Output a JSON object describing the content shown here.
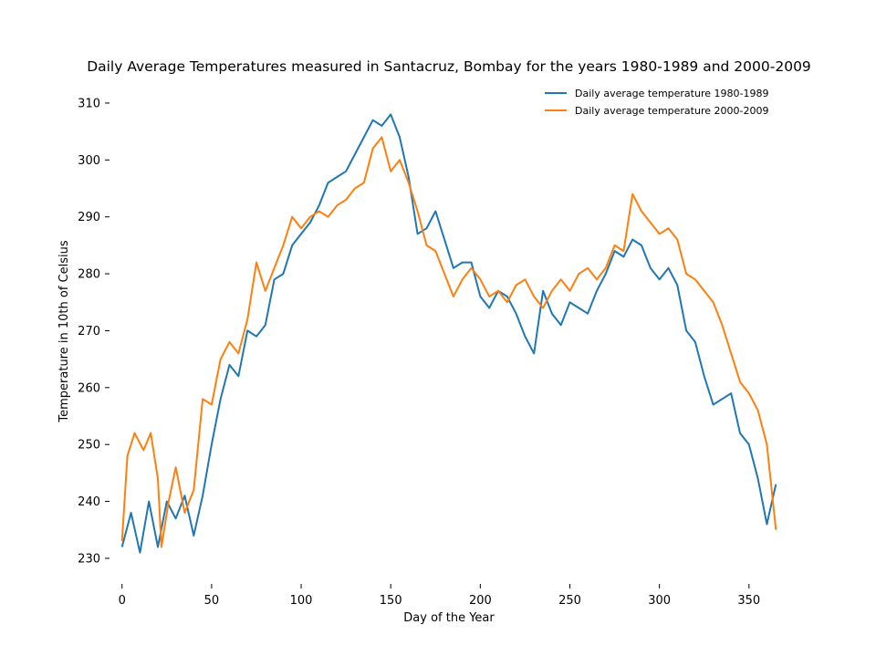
{
  "chart_data": {
    "type": "line",
    "title": "Daily Average Temperatures measured in Santacruz, Bombay for the years 1980-1989 and 2000-2009",
    "xlabel": "Day of the Year",
    "ylabel": "Temperature in 10th of Celsius",
    "xlim": [
      -7,
      372
    ],
    "ylim": [
      225.5,
      314
    ],
    "xticks": [
      0,
      50,
      100,
      150,
      200,
      250,
      300,
      350
    ],
    "yticks": [
      230,
      240,
      250,
      260,
      270,
      280,
      290,
      300,
      310
    ],
    "grid": false,
    "legend": "top-right",
    "series": [
      {
        "name": "Daily average temperature 1980-1989",
        "color": "#1f77b4",
        "points": [
          [
            0,
            232
          ],
          [
            5,
            238
          ],
          [
            10,
            231
          ],
          [
            15,
            240
          ],
          [
            20,
            232
          ],
          [
            25,
            240
          ],
          [
            30,
            237
          ],
          [
            35,
            241
          ],
          [
            40,
            234
          ],
          [
            45,
            241
          ],
          [
            50,
            250
          ],
          [
            55,
            258
          ],
          [
            60,
            264
          ],
          [
            65,
            262
          ],
          [
            70,
            270
          ],
          [
            75,
            269
          ],
          [
            80,
            271
          ],
          [
            85,
            279
          ],
          [
            90,
            280
          ],
          [
            95,
            285
          ],
          [
            100,
            287
          ],
          [
            105,
            289
          ],
          [
            110,
            292
          ],
          [
            115,
            296
          ],
          [
            120,
            297
          ],
          [
            125,
            298
          ],
          [
            130,
            301
          ],
          [
            135,
            304
          ],
          [
            140,
            307
          ],
          [
            145,
            306
          ],
          [
            150,
            308
          ],
          [
            155,
            304
          ],
          [
            160,
            297
          ],
          [
            165,
            287
          ],
          [
            170,
            288
          ],
          [
            175,
            291
          ],
          [
            180,
            286
          ],
          [
            185,
            281
          ],
          [
            190,
            282
          ],
          [
            195,
            282
          ],
          [
            200,
            276
          ],
          [
            205,
            274
          ],
          [
            210,
            277
          ],
          [
            215,
            276
          ],
          [
            220,
            273
          ],
          [
            225,
            269
          ],
          [
            230,
            266
          ],
          [
            235,
            277
          ],
          [
            240,
            273
          ],
          [
            245,
            271
          ],
          [
            250,
            275
          ],
          [
            255,
            274
          ],
          [
            260,
            273
          ],
          [
            265,
            277
          ],
          [
            270,
            280
          ],
          [
            275,
            284
          ],
          [
            280,
            283
          ],
          [
            285,
            286
          ],
          [
            290,
            285
          ],
          [
            295,
            281
          ],
          [
            300,
            279
          ],
          [
            305,
            281
          ],
          [
            310,
            278
          ],
          [
            315,
            270
          ],
          [
            320,
            268
          ],
          [
            325,
            262
          ],
          [
            330,
            257
          ],
          [
            335,
            258
          ],
          [
            340,
            259
          ],
          [
            345,
            252
          ],
          [
            350,
            250
          ],
          [
            355,
            244
          ],
          [
            360,
            236
          ],
          [
            365,
            243
          ]
        ]
      },
      {
        "name": "Daily average temperature 2000-2009",
        "color": "#ff7f0e",
        "points": [
          [
            0,
            233
          ],
          [
            3,
            248
          ],
          [
            7,
            252
          ],
          [
            12,
            249
          ],
          [
            16,
            252
          ],
          [
            20,
            244
          ],
          [
            22,
            232
          ],
          [
            26,
            240
          ],
          [
            30,
            246
          ],
          [
            35,
            238
          ],
          [
            40,
            242
          ],
          [
            45,
            258
          ],
          [
            50,
            257
          ],
          [
            55,
            265
          ],
          [
            60,
            268
          ],
          [
            65,
            266
          ],
          [
            70,
            272
          ],
          [
            75,
            282
          ],
          [
            80,
            277
          ],
          [
            85,
            281
          ],
          [
            90,
            285
          ],
          [
            95,
            290
          ],
          [
            100,
            288
          ],
          [
            105,
            290
          ],
          [
            110,
            291
          ],
          [
            115,
            290
          ],
          [
            120,
            292
          ],
          [
            125,
            293
          ],
          [
            130,
            295
          ],
          [
            135,
            296
          ],
          [
            140,
            302
          ],
          [
            145,
            304
          ],
          [
            150,
            298
          ],
          [
            155,
            300
          ],
          [
            160,
            296
          ],
          [
            165,
            291
          ],
          [
            170,
            285
          ],
          [
            175,
            284
          ],
          [
            180,
            280
          ],
          [
            185,
            276
          ],
          [
            190,
            279
          ],
          [
            195,
            281
          ],
          [
            200,
            279
          ],
          [
            205,
            276
          ],
          [
            210,
            277
          ],
          [
            215,
            275
          ],
          [
            220,
            278
          ],
          [
            225,
            279
          ],
          [
            230,
            276
          ],
          [
            235,
            274
          ],
          [
            240,
            277
          ],
          [
            245,
            279
          ],
          [
            250,
            277
          ],
          [
            255,
            280
          ],
          [
            260,
            281
          ],
          [
            265,
            279
          ],
          [
            270,
            281
          ],
          [
            275,
            285
          ],
          [
            280,
            284
          ],
          [
            285,
            294
          ],
          [
            290,
            291
          ],
          [
            295,
            289
          ],
          [
            300,
            287
          ],
          [
            305,
            288
          ],
          [
            310,
            286
          ],
          [
            315,
            280
          ],
          [
            320,
            279
          ],
          [
            325,
            277
          ],
          [
            330,
            275
          ],
          [
            335,
            271
          ],
          [
            340,
            266
          ],
          [
            345,
            261
          ],
          [
            350,
            259
          ],
          [
            355,
            256
          ],
          [
            360,
            250
          ],
          [
            365,
            235
          ]
        ]
      }
    ]
  }
}
